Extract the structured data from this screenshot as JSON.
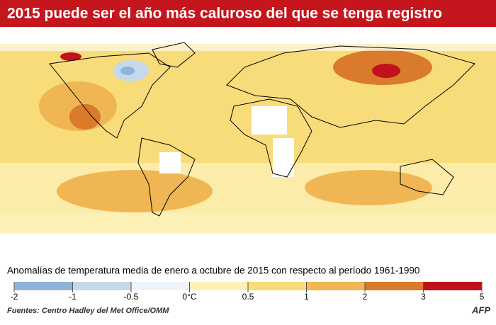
{
  "header": {
    "title": "2015 puede ser el año más caluroso del que se tenga registro"
  },
  "legend": {
    "caption": "Anomalías de temperatura media de enero a octubre de 2015 con respecto al período 1961-1990",
    "ticks": [
      -2,
      -1,
      -0.5,
      {
        "value": 0,
        "label": "0°C"
      },
      0.5,
      1,
      2,
      3,
      5
    ],
    "colors": [
      "#8fb3d9",
      "#c5d9ec",
      "#eef3f9",
      "#fdf0b5",
      "#f9dc7a",
      "#f0b653",
      "#d97b2a",
      "#c0121c"
    ]
  },
  "footer": {
    "source": "Fuentes: Centro Hadley del Met Office/OMM",
    "logo": "AFP"
  }
}
